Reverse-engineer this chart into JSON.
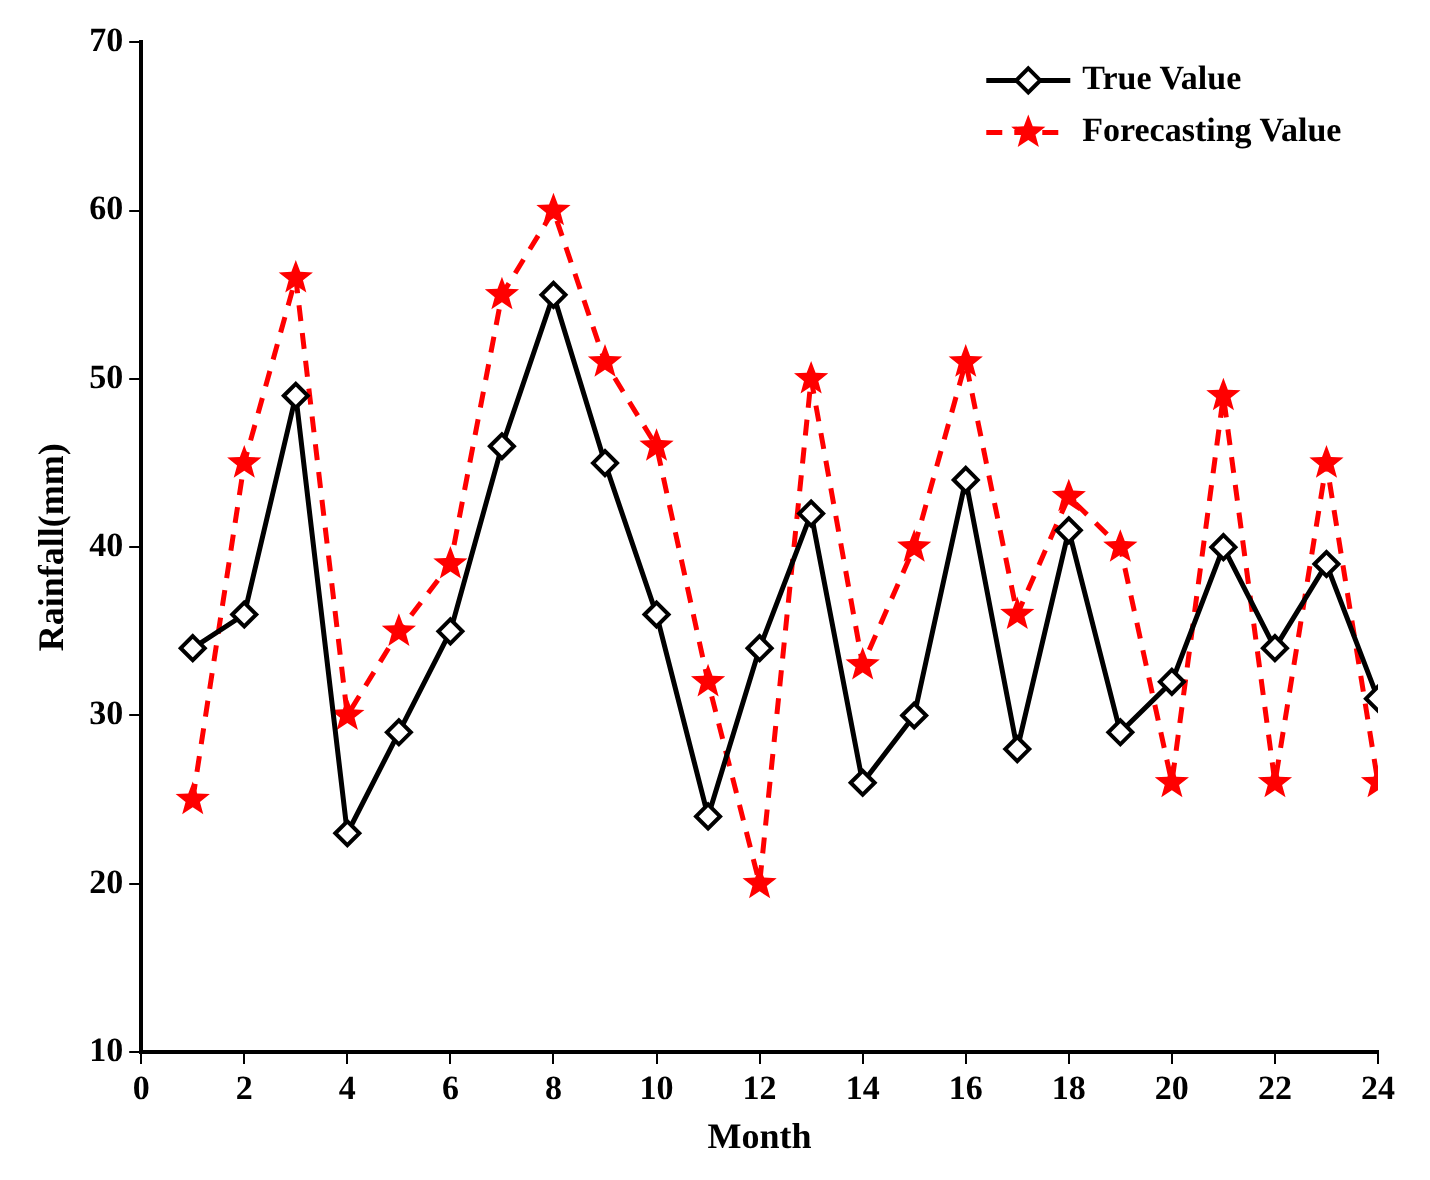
{
  "chart_data": {
    "type": "line",
    "xlabel": "Month",
    "ylabel": "Rainfall(mm)",
    "x": [
      1,
      2,
      3,
      4,
      5,
      6,
      7,
      8,
      9,
      10,
      11,
      12,
      13,
      14,
      15,
      16,
      17,
      18,
      19,
      20,
      21,
      22,
      23,
      24
    ],
    "series": [
      {
        "name": "True Value",
        "color": "#000000",
        "marker": "diamond",
        "line_style": "solid",
        "values": [
          34,
          36,
          49,
          23,
          29,
          35,
          46,
          55,
          45,
          36,
          24,
          34,
          42,
          26,
          30,
          44,
          28,
          41,
          29,
          32,
          40,
          34,
          39,
          31
        ]
      },
      {
        "name": "Forecasting Value",
        "color": "#ff0000",
        "marker": "star",
        "line_style": "dashed",
        "values": [
          25,
          45,
          56,
          30,
          35,
          39,
          55,
          60,
          51,
          46,
          32,
          20,
          50,
          33,
          40,
          51,
          36,
          43,
          40,
          26,
          49,
          26,
          45,
          26
        ]
      }
    ],
    "xlim": [
      0,
      24
    ],
    "xticks": [
      0,
      2,
      4,
      6,
      8,
      10,
      12,
      14,
      16,
      18,
      20,
      22,
      24
    ],
    "ylim": [
      10,
      70
    ],
    "yticks": [
      10,
      20,
      30,
      40,
      50,
      60,
      70
    ],
    "grid": false,
    "legend": "top right"
  }
}
